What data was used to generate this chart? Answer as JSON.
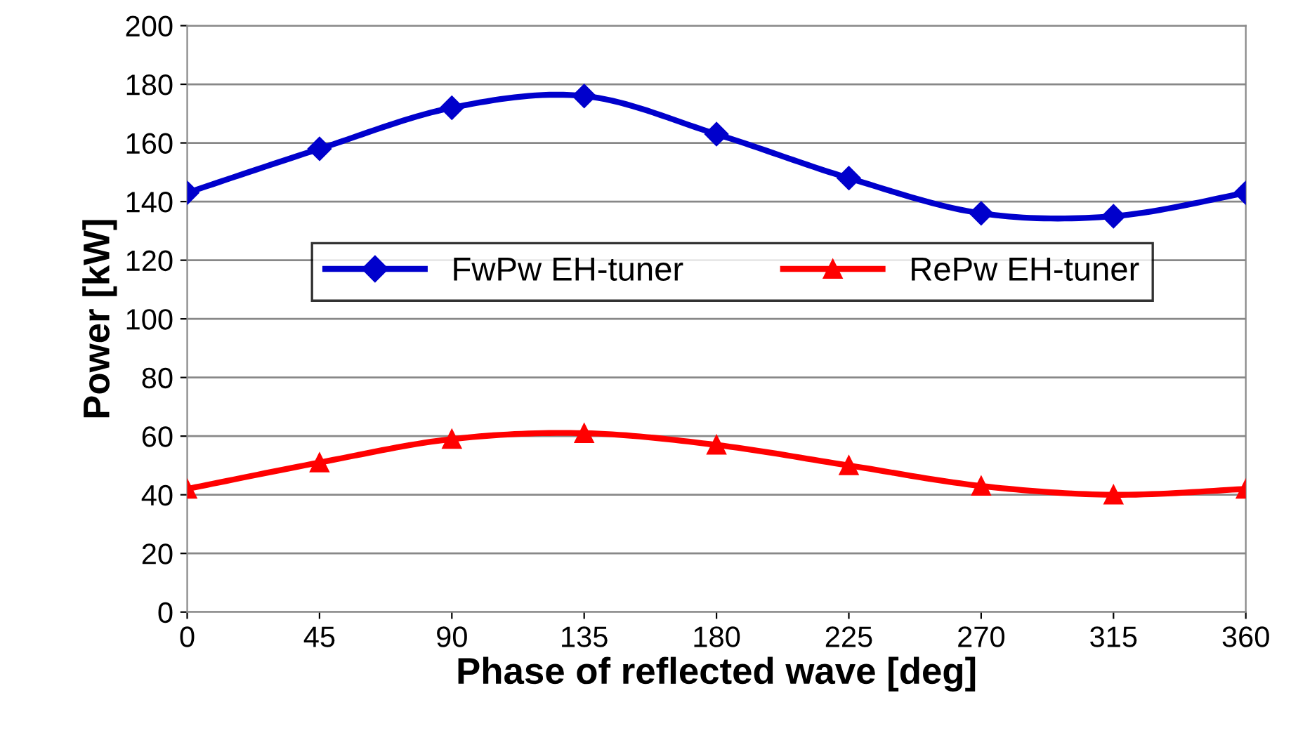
{
  "chart_data": {
    "type": "line",
    "xlabel": "Phase of reflected wave [deg]",
    "ylabel": "Power [kW]",
    "x": [
      0,
      45,
      90,
      135,
      180,
      225,
      270,
      315,
      360
    ],
    "series": [
      {
        "name": "FwPw EH-tuner",
        "color": "#0000cc",
        "marker": "diamond",
        "values": [
          143,
          158,
          172,
          176,
          163,
          148,
          136,
          135,
          143
        ]
      },
      {
        "name": "RePw EH-tuner",
        "color": "#ff0000",
        "marker": "triangle",
        "values": [
          42,
          51,
          59,
          61,
          57,
          50,
          43,
          40,
          42
        ]
      }
    ],
    "xlim": [
      0,
      360
    ],
    "xticks": [
      0,
      45,
      90,
      135,
      180,
      225,
      270,
      315,
      360
    ],
    "ylim": [
      0,
      200
    ],
    "yticks": [
      0,
      20,
      40,
      60,
      80,
      100,
      120,
      140,
      160,
      180,
      200
    ],
    "grid": "y",
    "legend": "center"
  }
}
